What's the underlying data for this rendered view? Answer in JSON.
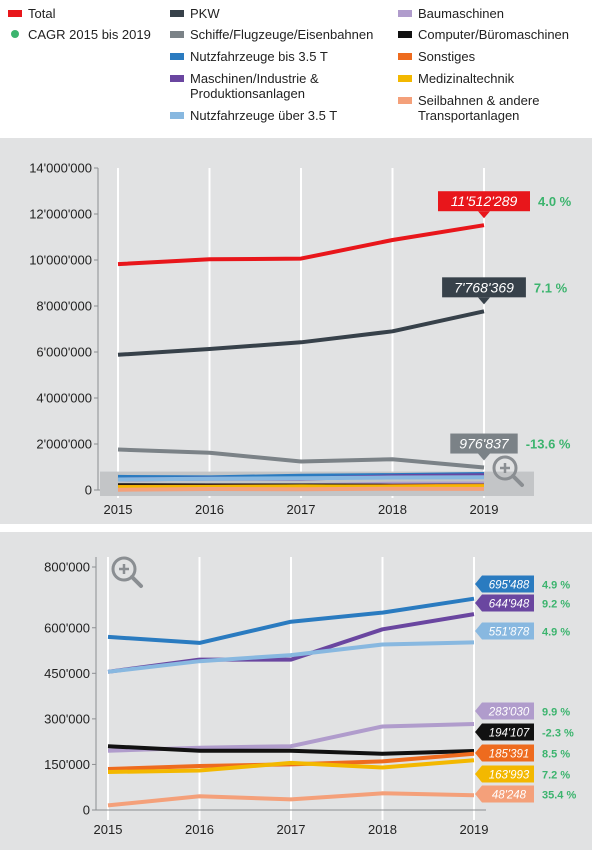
{
  "legend": [
    {
      "label": "Total",
      "color": "#e8161b",
      "shape": "bar"
    },
    {
      "label": "CAGR 2015 bis 2019",
      "color": "#3cb46e",
      "shape": "dot"
    },
    {
      "label": "PKW",
      "color": "#37414a",
      "shape": "bar"
    },
    {
      "label": "Schiffe/Flugzeuge/Eisenbahnen",
      "color": "#7b8287",
      "shape": "bar"
    },
    {
      "label": "Nutzfahrzeuge bis 3.5 T",
      "color": "#2a7bc0",
      "shape": "bar"
    },
    {
      "label": "Maschinen/Industrie & Produktionsanlagen",
      "color": "#6a46a0",
      "shape": "bar"
    },
    {
      "label": "Nutzfahrzeuge über 3.5 T",
      "color": "#88b8e0",
      "shape": "bar"
    },
    {
      "label": "Baumaschinen",
      "color": "#b09ccc",
      "shape": "bar"
    },
    {
      "label": "Computer/Büromaschinen",
      "color": "#111111",
      "shape": "bar"
    },
    {
      "label": "Sonstiges",
      "color": "#ee6b1e",
      "shape": "bar"
    },
    {
      "label": "Medizinaltechnik",
      "color": "#f3b800",
      "shape": "bar"
    },
    {
      "label": "Seilbahnen & andere Transportanlagen",
      "color": "#f4a07a",
      "shape": "bar"
    }
  ],
  "chart_data": [
    {
      "type": "line",
      "x": [
        "2015",
        "2016",
        "2017",
        "2018",
        "2019"
      ],
      "ylim": [
        0,
        14000000
      ],
      "yticks": [
        "0",
        "2'000'000",
        "4'000'000",
        "6'000'000",
        "8'000'000",
        "10'000'000",
        "12'000'000",
        "14'000'000"
      ],
      "ytick_values": [
        0,
        2000000,
        4000000,
        6000000,
        8000000,
        10000000,
        12000000,
        14000000
      ],
      "grid": "vertical",
      "zoom_region": [
        0,
        800000
      ],
      "series": [
        {
          "name": "Total",
          "color": "#e8161b",
          "values": [
            9820000,
            10030000,
            10060000,
            10870000,
            11512289
          ],
          "end_label": "11'512'289",
          "cagr": "4.0 %"
        },
        {
          "name": "PKW",
          "color": "#37414a",
          "values": [
            5880000,
            6130000,
            6420000,
            6900000,
            7768369
          ],
          "end_label": "7'768'369",
          "cagr": "7.1 %"
        },
        {
          "name": "Schiffe/Flugzeuge/Eisenbahnen",
          "color": "#7b8287",
          "values": [
            1760000,
            1620000,
            1240000,
            1340000,
            976837
          ],
          "end_label": "976'837",
          "cagr": "-13.6 %"
        },
        {
          "name": "Nutzfahrzeuge bis 3.5 T",
          "color": "#2a7bc0",
          "values": [
            570000,
            550000,
            620000,
            650000,
            695488
          ]
        },
        {
          "name": "Maschinen/Industrie & Produktionsanlagen",
          "color": "#6a46a0",
          "values": [
            455000,
            495000,
            495000,
            595000,
            644948
          ]
        },
        {
          "name": "Nutzfahrzeuge über 3.5 T",
          "color": "#88b8e0",
          "values": [
            455000,
            490000,
            510000,
            545000,
            551878
          ]
        },
        {
          "name": "Baumaschinen",
          "color": "#b09ccc",
          "values": [
            195000,
            205000,
            210000,
            275000,
            283030
          ]
        },
        {
          "name": "Computer/Büromaschinen",
          "color": "#111111",
          "values": [
            210000,
            195000,
            195000,
            185000,
            194107
          ]
        },
        {
          "name": "Sonstiges",
          "color": "#ee6b1e",
          "values": [
            135000,
            145000,
            150000,
            160000,
            185391
          ]
        },
        {
          "name": "Medizinaltechnik",
          "color": "#f3b800",
          "values": [
            125000,
            130000,
            155000,
            140000,
            163993
          ]
        },
        {
          "name": "Seilbahnen & andere Transportanlagen",
          "color": "#f4a07a",
          "values": [
            15000,
            45000,
            35000,
            55000,
            48248
          ]
        }
      ]
    },
    {
      "type": "line",
      "x": [
        "2015",
        "2016",
        "2017",
        "2018",
        "2019"
      ],
      "ylim": [
        0,
        800000
      ],
      "yticks": [
        "0",
        "150'000",
        "300'000",
        "450'000",
        "600'000",
        "800'000"
      ],
      "ytick_values": [
        0,
        150000,
        300000,
        450000,
        600000,
        800000
      ],
      "grid": "vertical",
      "series": [
        {
          "name": "Nutzfahrzeuge bis 3.5 T",
          "color": "#2a7bc0",
          "values": [
            570000,
            550000,
            620000,
            650000,
            695488
          ],
          "end_label": "695'488",
          "cagr": "4.9 %"
        },
        {
          "name": "Maschinen/Industrie & Produktionsanlagen",
          "color": "#6a46a0",
          "values": [
            455000,
            495000,
            495000,
            595000,
            644948
          ],
          "end_label": "644'948",
          "cagr": "9.2 %"
        },
        {
          "name": "Nutzfahrzeuge über 3.5 T",
          "color": "#88b8e0",
          "values": [
            455000,
            490000,
            510000,
            545000,
            551878
          ],
          "end_label": "551'878",
          "cagr": "4.9 %"
        },
        {
          "name": "Baumaschinen",
          "color": "#b09ccc",
          "values": [
            195000,
            205000,
            210000,
            275000,
            283030
          ],
          "end_label": "283'030",
          "cagr": "9.9 %"
        },
        {
          "name": "Computer/Büromaschinen",
          "color": "#111111",
          "values": [
            210000,
            195000,
            195000,
            185000,
            194107
          ],
          "end_label": "194'107",
          "cagr": "-2.3 %"
        },
        {
          "name": "Sonstiges",
          "color": "#ee6b1e",
          "values": [
            135000,
            145000,
            150000,
            160000,
            185391
          ],
          "end_label": "185'391",
          "cagr": "8.5 %"
        },
        {
          "name": "Medizinaltechnik",
          "color": "#f3b800",
          "values": [
            125000,
            130000,
            155000,
            140000,
            163993
          ],
          "end_label": "163'993",
          "cagr": "7.2 %"
        },
        {
          "name": "Seilbahnen & andere Transportanlagen",
          "color": "#f4a07a",
          "values": [
            15000,
            45000,
            35000,
            55000,
            48248
          ],
          "end_label": "48'248",
          "cagr": "35.4 %"
        }
      ]
    }
  ],
  "colors": {
    "cagr_text": "#3cb46e",
    "panel_bg": "#e1e2e3",
    "grid": "#ffffff"
  },
  "icons": {
    "top": "zoom-in-icon",
    "bottom": "zoom-in-icon"
  }
}
